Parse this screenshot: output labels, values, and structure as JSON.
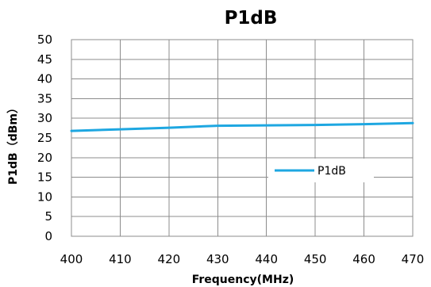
{
  "chart_data": {
    "type": "line",
    "title": "P1dB",
    "xlabel": "Frequency(MHz)",
    "ylabel": "P1dB（dBm）",
    "xlim": [
      400,
      470
    ],
    "ylim": [
      0,
      50
    ],
    "x_ticks": [
      "400",
      "410",
      "420",
      "430",
      "440",
      "450",
      "460",
      "470"
    ],
    "y_ticks": [
      "0",
      "5",
      "10",
      "15",
      "20",
      "25",
      "30",
      "35",
      "40",
      "45",
      "50"
    ],
    "grid": true,
    "legend_position": "right-middle",
    "series": [
      {
        "name": "P1dB",
        "color": "#1ea7e1",
        "x": [
          400,
          410,
          420,
          430,
          440,
          450,
          460,
          470
        ],
        "y": [
          26.8,
          27.2,
          27.6,
          28.1,
          28.2,
          28.3,
          28.5,
          28.8
        ]
      }
    ]
  }
}
